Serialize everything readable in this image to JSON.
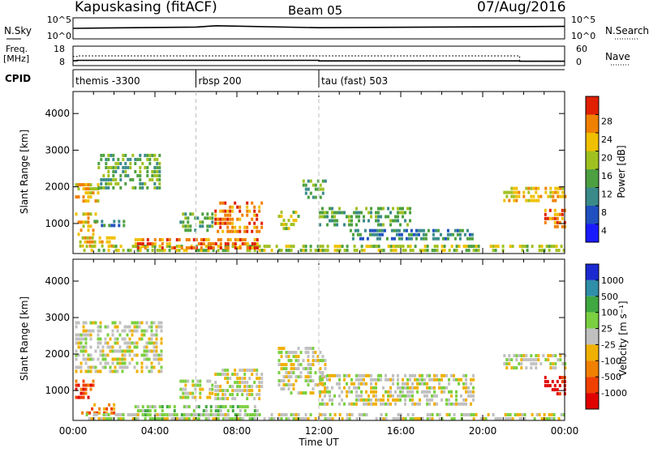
{
  "header": {
    "station": "Kapuskasing (fitACF)",
    "beam": "Beam 05",
    "date": "07/Aug/2016"
  },
  "left_labels": {
    "nsky": "N.Sky",
    "freq_top": "Freq.",
    "freq_unit": "[MHz]",
    "cpid": "CPID"
  },
  "right_labels": {
    "nsearch": "N.Search",
    "nave": "Nave"
  },
  "colors": {
    "range_line": "#bfbfbf",
    "background": "#ffffff"
  },
  "chart_data": [
    {
      "type": "line",
      "name": "noise",
      "left_axis": {
        "ticks": [
          "10^5",
          "10^0"
        ]
      },
      "right_axis": {
        "ticks": [
          "10^5",
          "10^0"
        ]
      },
      "x": [
        0,
        6,
        7,
        12,
        24
      ],
      "series": [
        {
          "name": "N.Sky",
          "values": [
            3.0,
            3.4,
            3.8,
            3.2,
            3.6
          ]
        }
      ]
    },
    {
      "type": "line",
      "name": "frequency",
      "left_axis": {
        "ticks": [
          "18",
          "8"
        ],
        "range": [
          8,
          18
        ]
      },
      "right_axis": {
        "ticks": [
          "60",
          "0"
        ],
        "range": [
          0,
          60
        ]
      },
      "x": [
        0,
        0.2,
        12,
        21.8,
        24
      ],
      "series": [
        {
          "name": "Freq.",
          "values": [
            10.3,
            10.5,
            10.2,
            10.0,
            10.0
          ]
        },
        {
          "name": "Nave",
          "values": [
            28,
            30,
            30,
            12,
            12
          ]
        }
      ]
    },
    {
      "type": "table",
      "name": "cpid",
      "segments": [
        {
          "start": 0,
          "end": 6,
          "label": "themis -3300"
        },
        {
          "start": 6,
          "end": 12,
          "label": "rbsp 200"
        },
        {
          "start": 12,
          "end": 24,
          "label": "tau (fast) 503"
        }
      ]
    },
    {
      "type": "heatmap",
      "name": "power",
      "xlabel": "",
      "ylabel": "Slant Range [km]",
      "xlim": [
        0,
        24
      ],
      "ylim": [
        180,
        4600
      ],
      "yticks": [
        1000,
        2000,
        3000,
        4000
      ],
      "colorbar": {
        "label": "Power [dB]",
        "ticks": [
          "4",
          "8",
          "12",
          "16",
          "20",
          "24",
          "28"
        ],
        "colors": [
          "#1a1aff",
          "#2050c0",
          "#3a8a8a",
          "#4ca040",
          "#a0c020",
          "#f0c000",
          "#f08000",
          "#e02000"
        ]
      },
      "patches": [
        {
          "x0": 0.1,
          "x1": 1.1,
          "r0": 700,
          "r1": 1300,
          "level": 5
        },
        {
          "x0": 0.1,
          "x1": 1.2,
          "r0": 1600,
          "r1": 2100,
          "level": 5
        },
        {
          "x0": 0.3,
          "x1": 2.0,
          "r0": 400,
          "r1": 650,
          "level": 5
        },
        {
          "x0": 1.2,
          "x1": 4.2,
          "r0": 2000,
          "r1": 2900,
          "level": 3
        },
        {
          "x0": 1.0,
          "x1": 2.5,
          "r0": 950,
          "r1": 1100,
          "level": 2
        },
        {
          "x0": 5.2,
          "x1": 6.8,
          "r0": 850,
          "r1": 1300,
          "level": 3
        },
        {
          "x0": 6.9,
          "x1": 9.2,
          "r0": 750,
          "r1": 1600,
          "level": 6
        },
        {
          "x0": 10.0,
          "x1": 11.0,
          "r0": 900,
          "r1": 1350,
          "level": 4
        },
        {
          "x0": 11.2,
          "x1": 12.3,
          "r0": 1700,
          "r1": 2200,
          "level": 3
        },
        {
          "x0": 12.0,
          "x1": 16.5,
          "r0": 1000,
          "r1": 1450,
          "level": 3
        },
        {
          "x0": 13.5,
          "x1": 19.5,
          "r0": 600,
          "r1": 850,
          "level": 2
        },
        {
          "x0": 21.0,
          "x1": 24.0,
          "r0": 1600,
          "r1": 2000,
          "level": 5
        },
        {
          "x0": 23.0,
          "x1": 24.0,
          "r0": 950,
          "r1": 1400,
          "level": 6
        },
        {
          "x0": 0.5,
          "x1": 24.0,
          "r0": 220,
          "r1": 420,
          "level": 4
        },
        {
          "x0": 3.0,
          "x1": 9.0,
          "r0": 300,
          "r1": 600,
          "level": 6
        }
      ]
    },
    {
      "type": "heatmap",
      "name": "velocity",
      "xlabel": "Time UT",
      "ylabel": "Slant Range [km]",
      "xlim": [
        0,
        24
      ],
      "ylim": [
        180,
        4600
      ],
      "yticks": [
        1000,
        2000,
        3000,
        4000
      ],
      "xticks": [
        "00:00",
        "04:00",
        "08:00",
        "12:00",
        "16:00",
        "20:00",
        "00:00"
      ],
      "colorbar": {
        "label": "Velocity [m s⁻¹]",
        "ticks": [
          "1000",
          "500",
          "100",
          "25",
          "-25",
          "-100",
          "-500",
          "-1000"
        ],
        "colors": [
          "#1a2ad0",
          "#2f8ea8",
          "#3fa840",
          "#7ad040",
          "#c0c0c0",
          "#f0b000",
          "#f08000",
          "#f04000",
          "#e00000"
        ]
      },
      "patches": [
        {
          "x0": 0.1,
          "x1": 1.0,
          "r0": 800,
          "r1": 1300,
          "level": 7
        },
        {
          "x0": 0.4,
          "x1": 2.0,
          "r0": 400,
          "r1": 650,
          "level": 6
        },
        {
          "x0": 0.1,
          "x1": 4.3,
          "r0": 1500,
          "r1": 2900,
          "level": 4
        },
        {
          "x0": 5.2,
          "x1": 6.8,
          "r0": 850,
          "r1": 1300,
          "level": 4
        },
        {
          "x0": 6.9,
          "x1": 9.2,
          "r0": 750,
          "r1": 1600,
          "level": 4
        },
        {
          "x0": 10.0,
          "x1": 12.3,
          "r0": 900,
          "r1": 2200,
          "level": 4
        },
        {
          "x0": 12.0,
          "x1": 19.5,
          "r0": 600,
          "r1": 1450,
          "level": 4
        },
        {
          "x0": 21.0,
          "x1": 24.0,
          "r0": 1600,
          "r1": 2000,
          "level": 4
        },
        {
          "x0": 23.0,
          "x1": 24.0,
          "r0": 950,
          "r1": 1400,
          "level": 8
        },
        {
          "x0": 3.0,
          "x1": 9.0,
          "r0": 250,
          "r1": 600,
          "level": 3
        },
        {
          "x0": 0.5,
          "x1": 24.0,
          "r0": 220,
          "r1": 380,
          "level": 4
        }
      ]
    }
  ],
  "footer": {
    "xlabel": "Time UT"
  }
}
